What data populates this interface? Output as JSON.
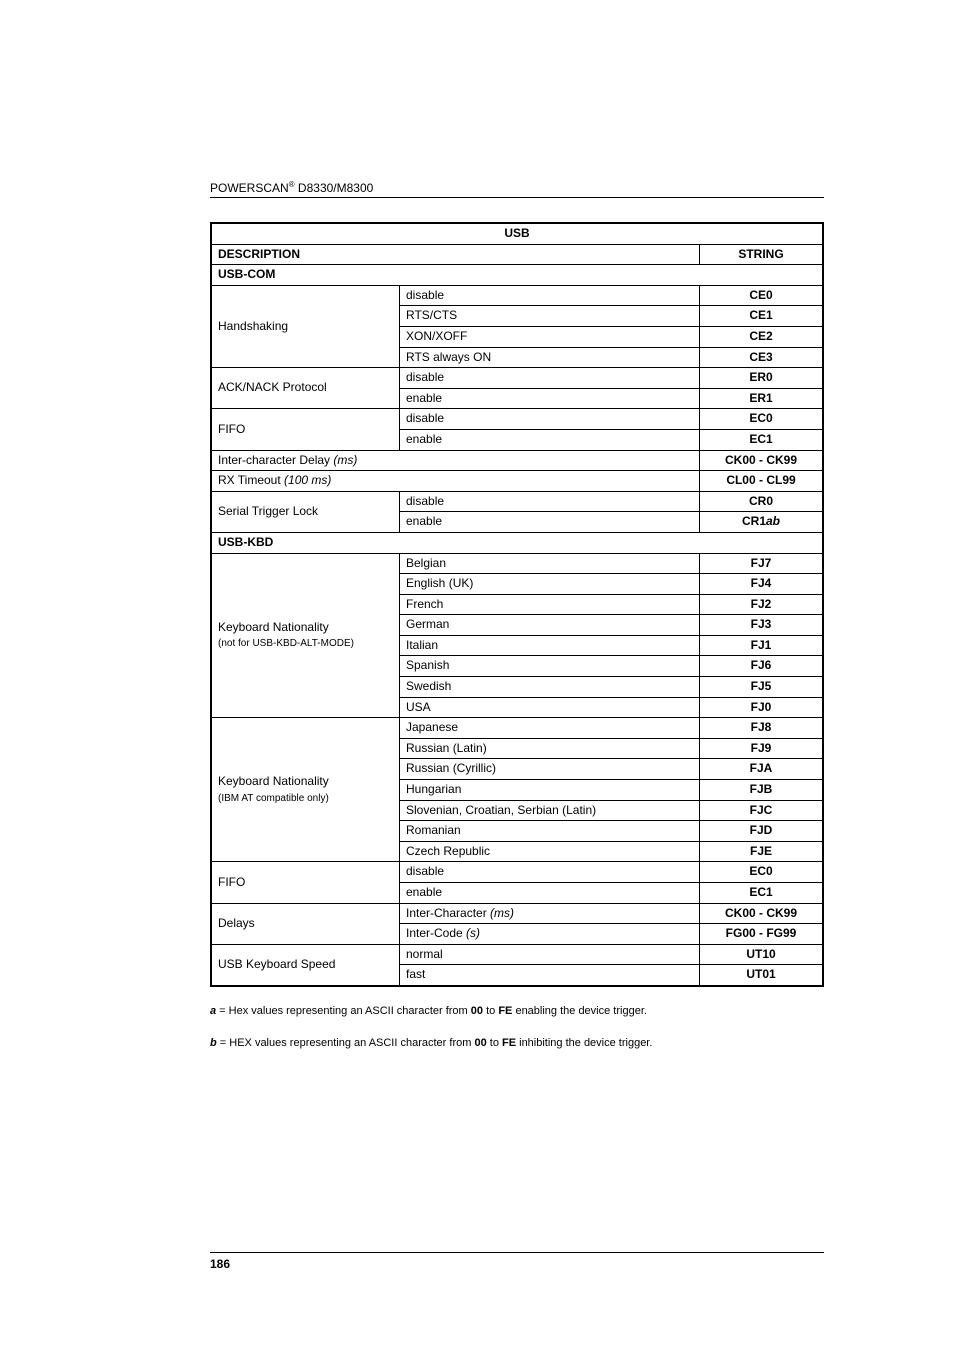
{
  "header": {
    "brand_prefix": "POWERSCAN",
    "reg": "®",
    "models": " D8330/M8300"
  },
  "table": {
    "title": "USB",
    "desc_header": "DESCRIPTION",
    "string_header": "STRING",
    "section_usbcom": "USB-COM",
    "section_usbkbd": "USB-KBD",
    "rows_com": {
      "handshaking": {
        "label": "Handshaking",
        "r0": {
          "v": "disable",
          "s": "CE0"
        },
        "r1": {
          "v": "RTS/CTS",
          "s": "CE1"
        },
        "r2": {
          "v": "XON/XOFF",
          "s": "CE2"
        },
        "r3": {
          "v": "RTS always ON",
          "s": "CE3"
        }
      },
      "acknack": {
        "label": "ACK/NACK Protocol",
        "r0": {
          "v": "disable",
          "s": "ER0"
        },
        "r1": {
          "v": "enable",
          "s": "ER1"
        }
      },
      "fifo1": {
        "label": "FIFO",
        "r0": {
          "v": "disable",
          "s": "EC0"
        },
        "r1": {
          "v": "enable",
          "s": "EC1"
        }
      },
      "icd": {
        "label": "Inter-character Delay ",
        "unit": "(ms)",
        "s": "CK00 - CK99"
      },
      "rxt": {
        "label": "RX Timeout ",
        "unit": "(100 ms)",
        "s": "CL00 - CL99"
      },
      "stl": {
        "label": "Serial Trigger Lock",
        "r0": {
          "v": "disable",
          "s": "CR0"
        },
        "r1": {
          "v": "enable",
          "s_prefix": "CR1",
          "s_suffix": "ab"
        }
      }
    },
    "rows_kbd": {
      "nat1": {
        "label": "Keyboard Nationality",
        "sublabel": "(not for USB-KBD-ALT-MODE)",
        "r0": {
          "v": "Belgian",
          "s": "FJ7"
        },
        "r1": {
          "v": "English (UK)",
          "s": "FJ4"
        },
        "r2": {
          "v": "French",
          "s": "FJ2"
        },
        "r3": {
          "v": "German",
          "s": "FJ3"
        },
        "r4": {
          "v": "Italian",
          "s": "FJ1"
        },
        "r5": {
          "v": "Spanish",
          "s": "FJ6"
        },
        "r6": {
          "v": "Swedish",
          "s": "FJ5"
        },
        "r7": {
          "v": "USA",
          "s": "FJ0"
        }
      },
      "nat2": {
        "label": "Keyboard Nationality",
        "sublabel": "(IBM AT compatible only)",
        "r0": {
          "v": "Japanese",
          "s": "FJ8"
        },
        "r1": {
          "v": "Russian (Latin)",
          "s": "FJ9"
        },
        "r2": {
          "v": "Russian (Cyrillic)",
          "s": "FJA"
        },
        "r3": {
          "v": "Hungarian",
          "s": "FJB"
        },
        "r4": {
          "v": "Slovenian, Croatian, Serbian (Latin)",
          "s": "FJC"
        },
        "r5": {
          "v": "Romanian",
          "s": "FJD"
        },
        "r6": {
          "v": "Czech Republic",
          "s": "FJE"
        }
      },
      "fifo2": {
        "label": "FIFO",
        "r0": {
          "v": "disable",
          "s": "EC0"
        },
        "r1": {
          "v": "enable",
          "s": "EC1"
        }
      },
      "delays": {
        "label": "Delays",
        "r0": {
          "v": "Inter-Character ",
          "unit": "(ms)",
          "s": "CK00 - CK99"
        },
        "r1": {
          "v": "Inter-Code ",
          "unit": "(s)",
          "s": "FG00 - FG99"
        }
      },
      "speed": {
        "label": "USB Keyboard Speed",
        "r0": {
          "v": "normal",
          "s": "UT10"
        },
        "r1": {
          "v": "fast",
          "s": "UT01"
        }
      }
    }
  },
  "footnotes": {
    "a_var": "a",
    "a_text": " = Hex values representing an ASCII character from ",
    "a_b1": "00",
    "a_mid": " to ",
    "a_b2": "FE",
    "a_end": " enabling the device trigger.",
    "b_var": "b",
    "b_text": " = HEX values representing an ASCII character from ",
    "b_b1": "00",
    "b_mid": " to ",
    "b_b2": "FE",
    "b_end": " inhibiting the device trigger."
  },
  "footer": {
    "page": "186"
  }
}
